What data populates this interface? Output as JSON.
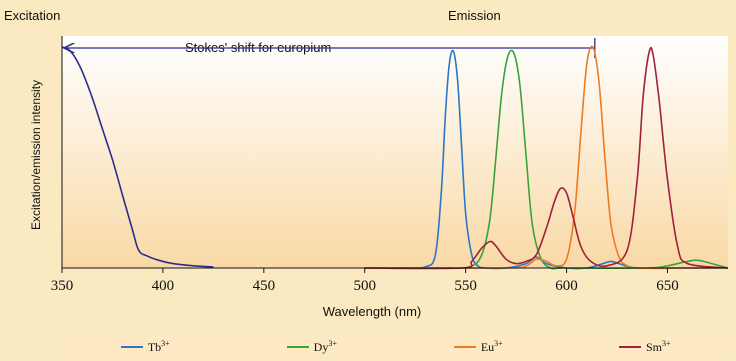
{
  "chart_data": {
    "type": "line",
    "title": "",
    "xlabel": "Wavelength (nm)",
    "ylabel": "Excitation/emission intensity",
    "xlim": [
      350,
      680
    ],
    "ylim": [
      0,
      1.05
    ],
    "xticks": [
      350,
      400,
      450,
      500,
      550,
      600,
      650
    ],
    "xtick_labels": [
      "350",
      "400",
      "450",
      "500",
      "550",
      "600",
      "650"
    ],
    "grid": false,
    "legend_position": "bottom",
    "annotations": {
      "excitation": "Excitation",
      "emission": "Emission",
      "stokes": "Stokes' shift for europium",
      "stokes_from_nm": 350,
      "stokes_to_nm": 614
    },
    "colors": {
      "excitation": "#2c2d8c",
      "gradient_top": "#ffffff",
      "gradient_bottom": "#f9d9a6"
    },
    "excitation": {
      "x": [
        350,
        353,
        356,
        360,
        365,
        370,
        375,
        380,
        385,
        388,
        392,
        398,
        405,
        415,
        425
      ],
      "y": [
        1.0,
        0.99,
        0.96,
        0.89,
        0.77,
        0.63,
        0.49,
        0.33,
        0.17,
        0.08,
        0.055,
        0.035,
        0.02,
        0.01,
        0.005
      ]
    },
    "series": [
      {
        "name": "Tb",
        "superscript": "3+",
        "color": "#2e76c4",
        "x": [
          500,
          520,
          530,
          535,
          538,
          540,
          542,
          544,
          546,
          548,
          550,
          553,
          556,
          560,
          570,
          580,
          585,
          590,
          600,
          610,
          618,
          622,
          626,
          635,
          660,
          680
        ],
        "y": [
          0.0,
          0.0,
          0.005,
          0.06,
          0.35,
          0.7,
          0.93,
          0.98,
          0.85,
          0.55,
          0.25,
          0.06,
          0.01,
          0.0,
          0.0,
          0.02,
          0.05,
          0.02,
          0.0,
          0.0,
          0.02,
          0.03,
          0.02,
          0.0,
          0.0,
          0.0
        ]
      },
      {
        "name": "Dy",
        "superscript": "3+",
        "color": "#3aa33a",
        "x": [
          500,
          540,
          552,
          558,
          562,
          565,
          568,
          571,
          574,
          577,
          580,
          583,
          587,
          592,
          600,
          640,
          650,
          660,
          665,
          672,
          680
        ],
        "y": [
          0.0,
          0.0,
          0.005,
          0.06,
          0.22,
          0.5,
          0.8,
          0.96,
          0.97,
          0.82,
          0.5,
          0.2,
          0.05,
          0.0,
          0.0,
          0.0,
          0.01,
          0.03,
          0.035,
          0.02,
          0.0
        ]
      },
      {
        "name": "Eu",
        "superscript": "3+",
        "color": "#f07a22",
        "x": [
          500,
          570,
          580,
          585,
          590,
          595,
          600,
          604,
          607,
          610,
          613,
          616,
          619,
          622,
          626,
          630,
          635,
          660,
          680
        ],
        "y": [
          0.0,
          0.0,
          0.01,
          0.04,
          0.03,
          0.01,
          0.04,
          0.25,
          0.6,
          0.92,
          1.0,
          0.85,
          0.5,
          0.2,
          0.05,
          0.01,
          0.0,
          0.0,
          0.0
        ]
      },
      {
        "name": "Sm",
        "superscript": "3+",
        "color": "#a1203a",
        "x": [
          500,
          548,
          553,
          558,
          562,
          565,
          570,
          575,
          580,
          585,
          590,
          594,
          597,
          600,
          603,
          607,
          612,
          620,
          630,
          635,
          638,
          641,
          643,
          646,
          650,
          655,
          660,
          680
        ],
        "y": [
          0.0,
          0.0,
          0.03,
          0.09,
          0.12,
          0.1,
          0.04,
          0.02,
          0.03,
          0.06,
          0.18,
          0.3,
          0.36,
          0.34,
          0.24,
          0.1,
          0.03,
          0.01,
          0.08,
          0.4,
          0.78,
          0.98,
          0.96,
          0.75,
          0.4,
          0.1,
          0.02,
          0.0
        ]
      }
    ]
  }
}
